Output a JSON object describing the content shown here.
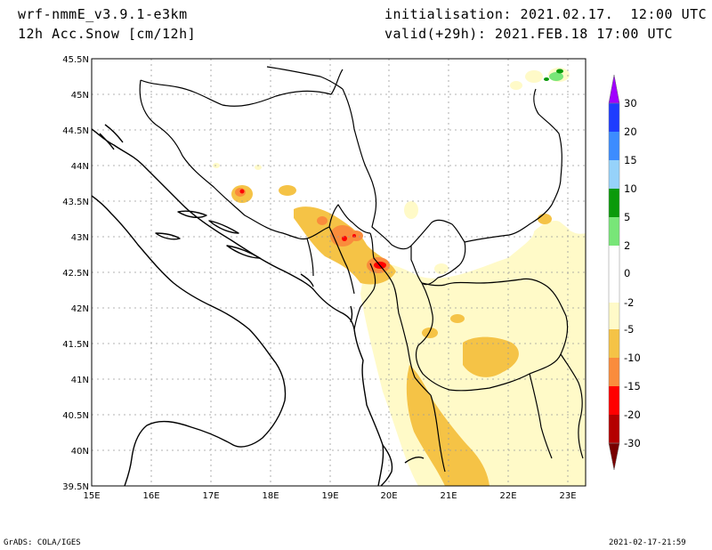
{
  "header": {
    "model": "wrf-nmmE_v3.9.1-e3km",
    "parameter": "12h Acc.Snow [cm/12h]",
    "initialisation": "initialisation: 2021.02.17.  12:00 UTC",
    "valid": "valid(+29h): 2021.FEB.18 17:00 UTC"
  },
  "footer": {
    "credit": "GrADS: COLA/IGES",
    "timestamp": "2021-02-17-21:59"
  },
  "map": {
    "lat_labels": [
      "45.5N",
      "45N",
      "44.5N",
      "44N",
      "43.5N",
      "43N",
      "42.5N",
      "42N",
      "41.5N",
      "41N",
      "40.5N",
      "40N",
      "39.5N"
    ],
    "lon_labels": [
      "15E",
      "16E",
      "17E",
      "18E",
      "19E",
      "20E",
      "21E",
      "22E",
      "23E"
    ],
    "lon_range": [
      15,
      23.3
    ],
    "lat_range": [
      39.5,
      45.5
    ],
    "grid": true,
    "coastline_color": "#000000"
  },
  "colorbar": {
    "labels": [
      "30",
      "20",
      "15",
      "10",
      "5",
      "2",
      "0",
      "-2",
      "-5",
      "-10",
      "-15",
      "-20",
      "-30"
    ],
    "colors": {
      "above_30": "#a000ff",
      "20_30": "#1e3cff",
      "15_20": "#3c8cff",
      "10_15": "#96d2fa",
      "5_10": "#0a9a0a",
      "2_5": "#78e678",
      "-2_2": "#ffffff",
      "-5_-2": "#fffac8",
      "-10_-5": "#f5c346",
      "-15_-10": "#fa8c3c",
      "-20_-15": "#ff0000",
      "-30_-20": "#b40000",
      "below_-30": "#780000"
    }
  }
}
